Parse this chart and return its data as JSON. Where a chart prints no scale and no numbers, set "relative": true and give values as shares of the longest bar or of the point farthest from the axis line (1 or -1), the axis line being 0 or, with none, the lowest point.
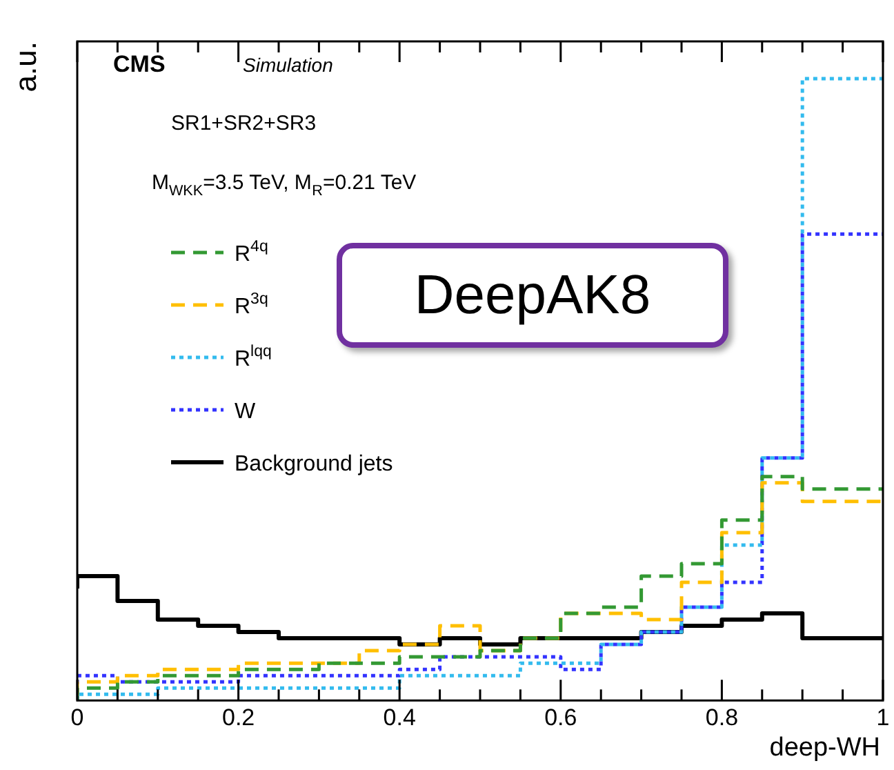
{
  "chart_data": {
    "type": "step",
    "relative": true,
    "xlabel": "deep-WH",
    "ylabel": "a.u.",
    "x": [
      0,
      0.05,
      0.1,
      0.15,
      0.2,
      0.25,
      0.3,
      0.35,
      0.4,
      0.45,
      0.5,
      0.55,
      0.6,
      0.65,
      0.7,
      0.75,
      0.8,
      0.85,
      0.9,
      0.95,
      1
    ],
    "xlim": [
      0,
      1
    ],
    "xticks": [
      0,
      {
        "value": 0.05,
        "label": null
      },
      {
        "value": 0.1,
        "label": null
      },
      {
        "value": 0.15,
        "label": null
      },
      0.2,
      {
        "value": 0.25,
        "label": null
      },
      {
        "value": 0.3,
        "label": null
      },
      {
        "value": 0.35,
        "label": null
      },
      0.4,
      {
        "value": 0.45,
        "label": null
      },
      {
        "value": 0.5,
        "label": null
      },
      {
        "value": 0.55,
        "label": null
      },
      0.6,
      {
        "value": 0.65,
        "label": null
      },
      {
        "value": 0.7,
        "label": null
      },
      {
        "value": 0.75,
        "label": null
      },
      0.8,
      {
        "value": 0.85,
        "label": null
      },
      {
        "value": 0.9,
        "label": null
      },
      {
        "value": 0.95,
        "label": null
      },
      1
    ],
    "grid": false,
    "legend": "top left",
    "series": [
      {
        "name": "R$^{4q}$",
        "color": "#339933",
        "line_style": "dashed",
        "values": [
          0.0,
          0.02,
          0.03,
          0.04,
          0.04,
          0.05,
          0.05,
          0.06,
          0.06,
          0.07,
          0.07,
          0.08,
          0.1,
          0.14,
          0.15,
          0.2,
          0.22,
          0.29,
          0.36,
          0.34,
          0.34
        ]
      },
      {
        "name": "R$^{3q}$",
        "color": "#ffbf00",
        "line_style": "dashed",
        "values": [
          0.01,
          0.03,
          0.04,
          0.05,
          0.05,
          0.06,
          0.06,
          0.06,
          0.08,
          0.09,
          0.12,
          0.08,
          0.1,
          0.14,
          0.14,
          0.13,
          0.19,
          0.27,
          0.35,
          0.32,
          0.32
        ]
      },
      {
        "name": "R$^{lqq}$",
        "color": "#33bbee",
        "line_style": "dotted",
        "values": [
          0.0,
          0.01,
          0.01,
          0.02,
          0.02,
          0.02,
          0.02,
          0.02,
          0.02,
          0.04,
          0.04,
          0.04,
          0.06,
          0.06,
          0.09,
          0.11,
          0.15,
          0.25,
          0.39,
          1,
          1
        ]
      },
      {
        "name": "W",
        "color": "#3333ff",
        "line_style": "dotted",
        "values": [
          0.0,
          0.04,
          0.03,
          0.03,
          0.03,
          0.04,
          0.04,
          0.04,
          0.04,
          0.05,
          0.07,
          0.07,
          0.07,
          0.05,
          0.09,
          0.11,
          0.15,
          0.19,
          0.39,
          0.75,
          0.75
        ]
      },
      {
        "name": "Background jets",
        "color": "#000000",
        "line_style": "solid",
        "values": [
          0.18,
          0.2,
          0.16,
          0.13,
          0.12,
          0.11,
          0.1,
          0.1,
          0.1,
          0.09,
          0.1,
          0.09,
          0.1,
          0.1,
          0.1,
          0.11,
          0.12,
          0.13,
          0.14,
          0.1,
          0.1
        ]
      }
    ],
    "annotations": [
      "CMS",
      "Simulation",
      "SR1+SR2+SR3",
      "M$_{WKK}$=3.5 TeV, M$_{R}$=0.21 TeV",
      "DeepAK8"
    ]
  }
}
